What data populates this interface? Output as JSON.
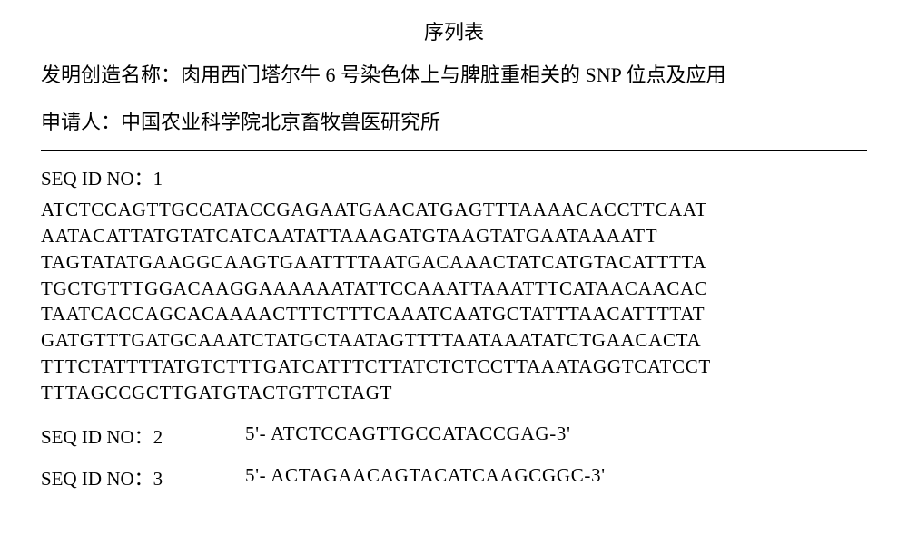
{
  "title": "序列表",
  "invention_label": "发明创造名称：",
  "invention_name": "肉用西门塔尔牛 6 号染色体上与脾脏重相关的 SNP 位点及应用",
  "applicant_label": "申请人：",
  "applicant_name": "中国农业科学院北京畜牧兽医研究所",
  "seq1": {
    "label": "SEQ ID NO：1",
    "lines": [
      "ATCTCCAGTTGCCATACCGAGAATGAACATGAGTTTAAAACACCTTCAAT",
      "AATACATTATGTATCATCAATATTAAAGATGTAAGTATGAATAAAATT",
      "TAGTATATGAAGGCAAGTGAATTTTAATGACAAACTATCATGTACATTTTA",
      "TGCTGTTTGGACAAGGAAAAAATATTCCAAATTAAATTTCATAACAACAC",
      "TAATCACCAGCACAAAACTTTCTTTCAAATCAATGCTATTTAACATTTTAT",
      "GATGTTTGATGCAAATCTATGCTAATAGTTTTAATAAATATCTGAACACTA",
      "TTTCTATTTTATGTCTTTGATCATTTCTTATCTCTCCTTAAATAGGTCATCCT",
      "TTTAGCCGCTTGATGTACTGTTCTAGT"
    ]
  },
  "seq2": {
    "label": "SEQ ID NO：2",
    "value": "5'- ATCTCCAGTTGCCATACCGAG-3'"
  },
  "seq3": {
    "label": "SEQ ID NO：3",
    "value": "5'- ACTAGAACAGTACATCAAGCGGC-3'"
  },
  "colors": {
    "background": "#ffffff",
    "text": "#000000",
    "divider": "#000000"
  },
  "typography": {
    "title_fontsize": 22,
    "body_fontsize": 22,
    "seq_fontsize": 21,
    "chinese_font": "SimSun",
    "latin_font": "Times New Roman"
  }
}
